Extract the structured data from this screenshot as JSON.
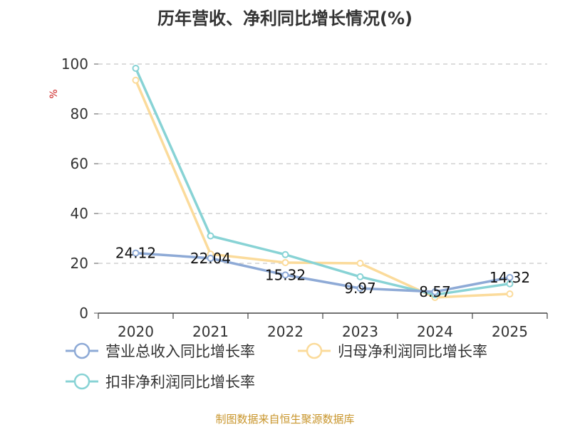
{
  "title": "历年营收、净利同比增长情况(%)",
  "footer": "制图数据来自恒生聚源数据库",
  "chart_data": {
    "type": "line",
    "ylabel": "%",
    "ylim": [
      0,
      100
    ],
    "yticks": [
      0,
      20,
      40,
      60,
      80,
      100
    ],
    "categories": [
      "2020",
      "2021",
      "2022",
      "2023",
      "2024",
      "2025"
    ],
    "grid": true,
    "legend_position": "bottom",
    "series": [
      {
        "name": "营业总收入同比增长率",
        "color": "#8eaad6",
        "values": [
          24.12,
          22.04,
          15.32,
          9.97,
          8.57,
          14.32
        ],
        "labels": [
          "24.12",
          "22.04",
          "15.32",
          "9.97",
          "8.57",
          "14.32"
        ]
      },
      {
        "name": "归母净利润同比增长率",
        "color": "#fbdb9b",
        "values": [
          93.5,
          23.7,
          20.3,
          20.0,
          6.3,
          7.7
        ]
      },
      {
        "name": "扣非净利润同比增长率",
        "color": "#88d3d5",
        "values": [
          98.3,
          31.0,
          23.5,
          14.6,
          7.4,
          11.8
        ]
      }
    ]
  }
}
